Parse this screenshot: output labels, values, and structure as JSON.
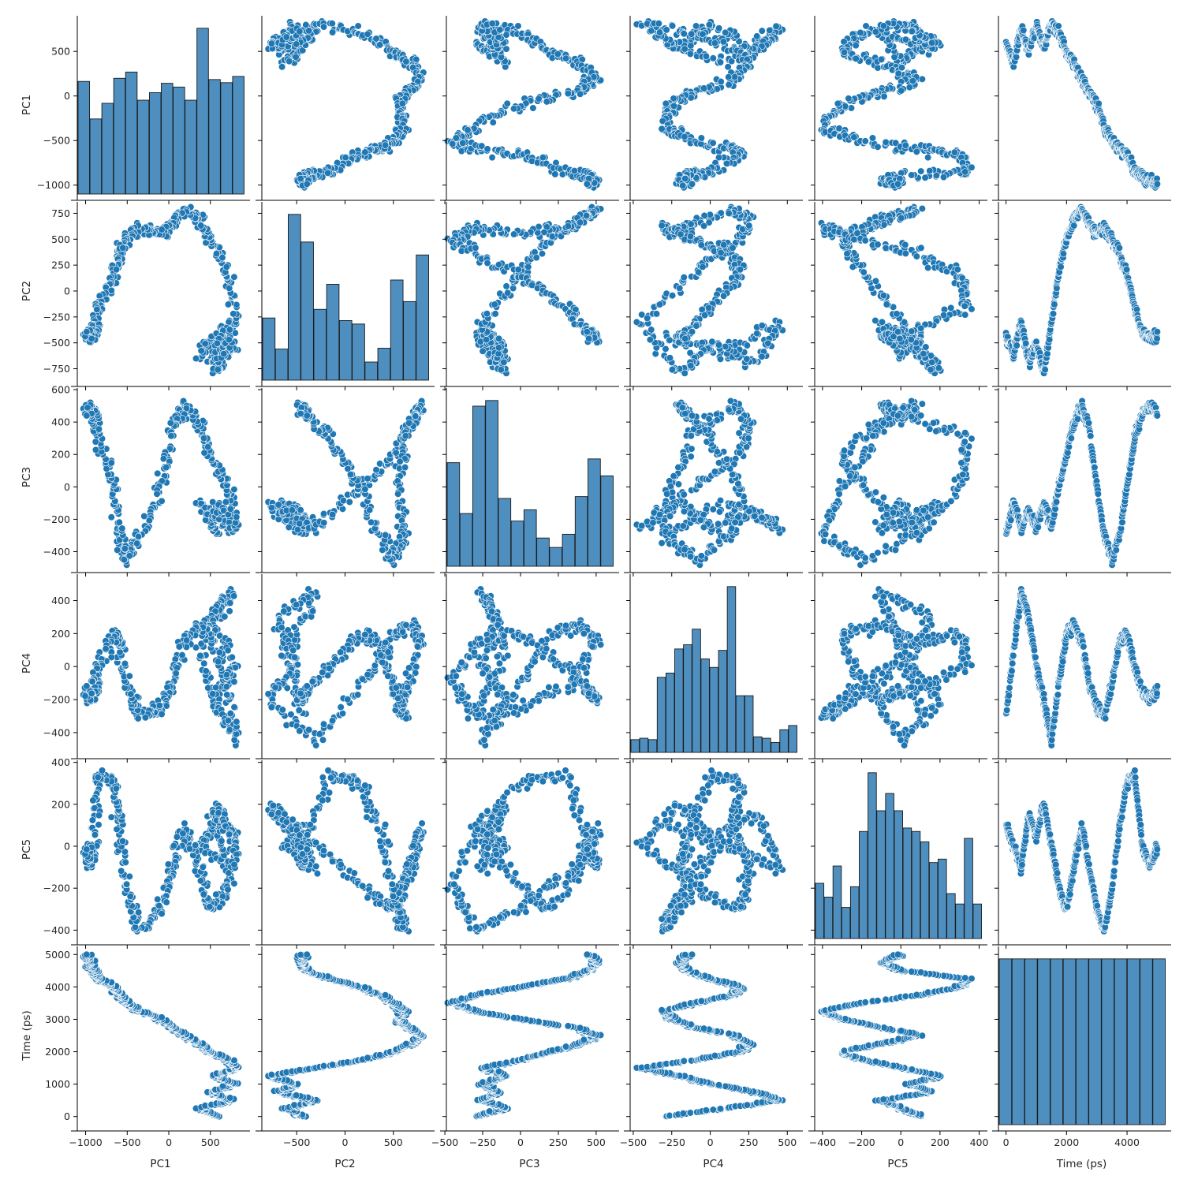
{
  "chart_data": {
    "type": "pairplot",
    "variables": [
      "PC1",
      "PC2",
      "PC3",
      "PC4",
      "PC5",
      "Time (ps)"
    ],
    "color": "#1f77b4",
    "hist_color": "#4f8fbf",
    "ranges": [
      [
        -1100,
        900
      ],
      [
        -860,
        860
      ],
      [
        -490,
        610
      ],
      [
        -520,
        560
      ],
      [
        -440,
        410
      ],
      [
        -250,
        5250
      ]
    ],
    "ticks": [
      [
        -1000,
        -500,
        0,
        500
      ],
      [
        -500,
        0,
        500
      ],
      [
        -500,
        -250,
        0,
        250,
        500
      ],
      [
        -500,
        -250,
        0,
        250,
        500
      ],
      [
        -400,
        -200,
        0,
        200,
        400
      ],
      [
        0,
        2000,
        4000
      ]
    ],
    "y_ticks": [
      [
        -1000,
        -500,
        0,
        500
      ],
      [
        -750,
        -500,
        -250,
        0,
        250,
        500,
        750
      ],
      [
        -400,
        -200,
        0,
        200,
        400,
        600
      ],
      [
        -400,
        -200,
        0,
        200,
        400
      ],
      [
        -400,
        -200,
        0,
        200,
        400
      ],
      [
        0,
        1000,
        2000,
        3000,
        4000,
        5000
      ]
    ],
    "trajectory": {
      "time": [
        0,
        250,
        500,
        750,
        1000,
        1250,
        1500,
        1750,
        2000,
        2250,
        2500,
        2750,
        3000,
        3250,
        3500,
        3750,
        4000,
        4250,
        4500,
        4750,
        5000
      ],
      "PC1": [
        600,
        350,
        750,
        500,
        800,
        550,
        800,
        700,
        500,
        350,
        200,
        50,
        -100,
        -350,
        -500,
        -600,
        -650,
        -850,
        -900,
        -950,
        -1000
      ],
      "PC2": [
        -450,
        -600,
        -300,
        -700,
        -500,
        -800,
        -300,
        200,
        500,
        700,
        800,
        650,
        550,
        600,
        500,
        350,
        150,
        -150,
        -400,
        -450,
        -450
      ],
      "PC3": [
        -300,
        -100,
        -250,
        -150,
        -250,
        -100,
        -250,
        0,
        200,
        400,
        500,
        350,
        0,
        -300,
        -450,
        -300,
        0,
        300,
        450,
        500,
        450
      ],
      "PC4": [
        -300,
        100,
        450,
        300,
        0,
        -200,
        -450,
        -100,
        200,
        250,
        150,
        -100,
        -250,
        -300,
        -100,
        150,
        200,
        0,
        -150,
        -200,
        -150
      ],
      "PC5": [
        100,
        0,
        -100,
        150,
        50,
        200,
        0,
        -200,
        -300,
        -100,
        100,
        -100,
        -300,
        -400,
        -200,
        100,
        300,
        350,
        0,
        -100,
        0
      ]
    },
    "histograms": [
      [
        180,
        120,
        145,
        185,
        195,
        150,
        162,
        177,
        171,
        150,
        265,
        183,
        178,
        188
      ],
      [
        72,
        36,
        192,
        160,
        82,
        111,
        69,
        65,
        21,
        37,
        116,
        91,
        145
      ],
      [
        55,
        28,
        85,
        88,
        36,
        24,
        30,
        15,
        10,
        17,
        37,
        57,
        48
      ],
      [
        9,
        10,
        9,
        53,
        56,
        73,
        76,
        87,
        66,
        60,
        72,
        117,
        40,
        40,
        11,
        10,
        7,
        16,
        19
      ],
      [
        16,
        12,
        21,
        9,
        15,
        31,
        48,
        37,
        42,
        37,
        32,
        31,
        28,
        22,
        23,
        13,
        10,
        29,
        10
      ],
      [
        40,
        40,
        40,
        40,
        40,
        40,
        40,
        40,
        40,
        40,
        40,
        40,
        40
      ]
    ]
  }
}
